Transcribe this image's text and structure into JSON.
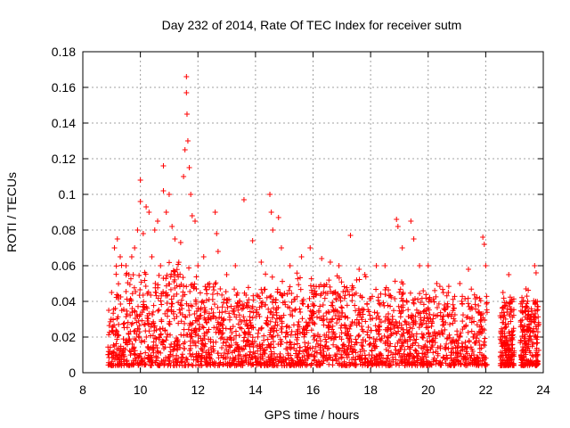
{
  "chart_data": {
    "type": "scatter",
    "title": "Day 232 of 2014, Rate Of TEC Index for receiver sutm",
    "xlabel": "GPS time / hours",
    "ylabel": "ROTI / TECUs",
    "xlim": [
      8,
      24
    ],
    "ylim": [
      0,
      0.18
    ],
    "grid": true,
    "marker": "+",
    "x_ticks": [
      "8",
      "10",
      "12",
      "14",
      "16",
      "18",
      "20",
      "22",
      "24"
    ],
    "y_ticks": [
      "0",
      "0.02",
      "0.04",
      "0.06",
      "0.08",
      "0.1",
      "0.12",
      "0.14",
      "0.16",
      "0.18"
    ],
    "color": "#ff0000",
    "series": [
      {
        "name": "ROTI",
        "points": [
          [
            8.9,
            0.035
          ],
          [
            9.0,
            0.045
          ],
          [
            9.1,
            0.07
          ],
          [
            9.2,
            0.075
          ],
          [
            9.3,
            0.065
          ],
          [
            9.5,
            0.06
          ],
          [
            9.6,
            0.055
          ],
          [
            9.7,
            0.065
          ],
          [
            9.8,
            0.07
          ],
          [
            9.9,
            0.08
          ],
          [
            10.0,
            0.108
          ],
          [
            10.0,
            0.096
          ],
          [
            10.1,
            0.078
          ],
          [
            10.2,
            0.093
          ],
          [
            10.3,
            0.09
          ],
          [
            10.4,
            0.065
          ],
          [
            10.5,
            0.08
          ],
          [
            10.6,
            0.085
          ],
          [
            10.7,
            0.06
          ],
          [
            10.8,
            0.116
          ],
          [
            10.8,
            0.102
          ],
          [
            10.9,
            0.09
          ],
          [
            11.0,
            0.1
          ],
          [
            11.1,
            0.082
          ],
          [
            11.2,
            0.075
          ],
          [
            11.3,
            0.055
          ],
          [
            11.4,
            0.073
          ],
          [
            11.5,
            0.11
          ],
          [
            11.55,
            0.125
          ],
          [
            11.6,
            0.166
          ],
          [
            11.6,
            0.157
          ],
          [
            11.62,
            0.145
          ],
          [
            11.65,
            0.13
          ],
          [
            11.7,
            0.115
          ],
          [
            11.75,
            0.1
          ],
          [
            11.8,
            0.088
          ],
          [
            11.9,
            0.085
          ],
          [
            12.0,
            0.06
          ],
          [
            12.2,
            0.065
          ],
          [
            12.4,
            0.05
          ],
          [
            12.6,
            0.09
          ],
          [
            12.65,
            0.078
          ],
          [
            12.7,
            0.068
          ],
          [
            13.0,
            0.055
          ],
          [
            13.3,
            0.06
          ],
          [
            13.6,
            0.097
          ],
          [
            13.9,
            0.074
          ],
          [
            14.2,
            0.062
          ],
          [
            14.5,
            0.1
          ],
          [
            14.55,
            0.09
          ],
          [
            14.6,
            0.08
          ],
          [
            14.8,
            0.087
          ],
          [
            14.9,
            0.07
          ],
          [
            15.2,
            0.06
          ],
          [
            15.6,
            0.065
          ],
          [
            15.9,
            0.07
          ],
          [
            16.3,
            0.064
          ],
          [
            16.6,
            0.062
          ],
          [
            16.9,
            0.06
          ],
          [
            17.3,
            0.077
          ],
          [
            17.6,
            0.058
          ],
          [
            17.8,
            0.055
          ],
          [
            18.2,
            0.06
          ],
          [
            18.5,
            0.06
          ],
          [
            18.9,
            0.086
          ],
          [
            18.95,
            0.082
          ],
          [
            19.1,
            0.07
          ],
          [
            19.4,
            0.085
          ],
          [
            19.5,
            0.075
          ],
          [
            19.7,
            0.06
          ],
          [
            20.0,
            0.06
          ],
          [
            20.3,
            0.05
          ],
          [
            20.7,
            0.045
          ],
          [
            21.1,
            0.05
          ],
          [
            21.4,
            0.058
          ],
          [
            21.9,
            0.076
          ],
          [
            21.95,
            0.072
          ],
          [
            22.0,
            0.06
          ],
          [
            22.6,
            0.045
          ],
          [
            22.8,
            0.055
          ],
          [
            23.4,
            0.047
          ],
          [
            23.7,
            0.06
          ],
          [
            23.75,
            0.056
          ]
        ]
      }
    ]
  }
}
